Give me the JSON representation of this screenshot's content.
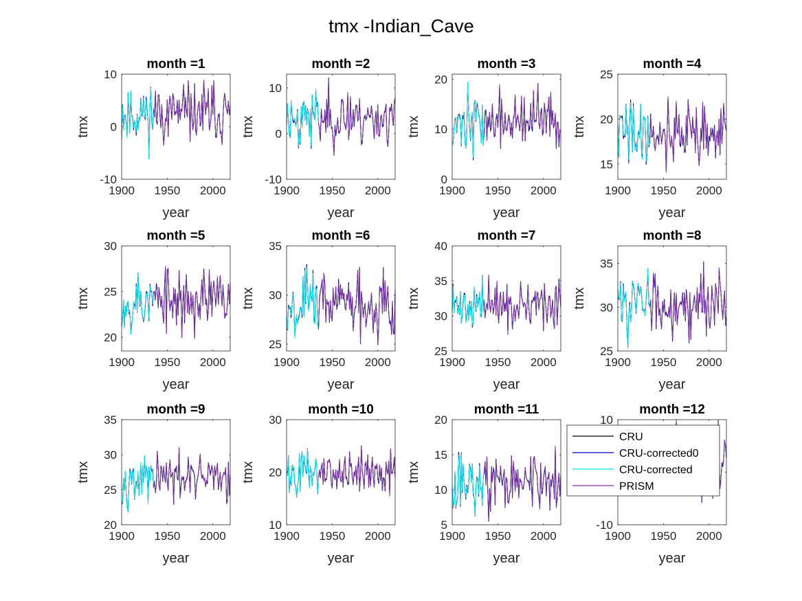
{
  "chart_data": {
    "title": "tmx -Indian_Cave",
    "type": "line",
    "legend": {
      "placement": "over subplot 12 (left-top)",
      "entries": [
        {
          "name": "CRU",
          "color": "#000000"
        },
        {
          "name": "CRU-corrected0",
          "color": "#0000cc"
        },
        {
          "name": "CRU-corrected",
          "color": "#00e5ee"
        },
        {
          "name": "PRISM",
          "color": "#7b2ea0"
        }
      ]
    },
    "xlim": [
      1900,
      2019
    ],
    "xticks": [
      1900,
      1950,
      2000
    ],
    "xlabel": "year",
    "ylabel": "tmx",
    "subplots": [
      {
        "title": "month =1",
        "ylim": [
          -10,
          10
        ],
        "yticks": [
          -10,
          0,
          10
        ],
        "mean": 2.5,
        "std": 2.8,
        "seed": 11
      },
      {
        "title": "month =2",
        "ylim": [
          -10,
          13
        ],
        "yticks": [
          -10,
          0,
          10
        ],
        "mean": 3.5,
        "std": 3.2,
        "seed": 23
      },
      {
        "title": "month =3",
        "ylim": [
          0,
          21
        ],
        "yticks": [
          0,
          10,
          20
        ],
        "mean": 11.5,
        "std": 3.0,
        "seed": 37
      },
      {
        "title": "month =4",
        "ylim": [
          13.3,
          25
        ],
        "yticks": [
          15,
          20,
          25
        ],
        "mean": 18.5,
        "std": 1.9,
        "seed": 41
      },
      {
        "title": "month =5",
        "ylim": [
          18.5,
          30
        ],
        "yticks": [
          20,
          25,
          30
        ],
        "mean": 24.0,
        "std": 1.8,
        "seed": 53
      },
      {
        "title": "month =6",
        "ylim": [
          24.3,
          35
        ],
        "yticks": [
          25,
          30,
          35
        ],
        "mean": 29.3,
        "std": 1.7,
        "seed": 67
      },
      {
        "title": "month =7",
        "ylim": [
          25,
          40
        ],
        "yticks": [
          25,
          30,
          35,
          40
        ],
        "mean": 31.5,
        "std": 1.7,
        "seed": 71
      },
      {
        "title": "month =8",
        "ylim": [
          25,
          37
        ],
        "yticks": [
          25,
          30,
          35
        ],
        "mean": 30.5,
        "std": 1.8,
        "seed": 83
      },
      {
        "title": "month =9",
        "ylim": [
          20,
          35
        ],
        "yticks": [
          20,
          25,
          30,
          35
        ],
        "mean": 26.5,
        "std": 1.7,
        "seed": 97
      },
      {
        "title": "month =10",
        "ylim": [
          10,
          30
        ],
        "yticks": [
          10,
          20,
          30
        ],
        "mean": 20.0,
        "std": 2.2,
        "seed": 101
      },
      {
        "title": "month =11",
        "ylim": [
          5,
          20
        ],
        "yticks": [
          5,
          10,
          15,
          20
        ],
        "mean": 11.0,
        "std": 2.2,
        "seed": 113
      },
      {
        "title": "month =12",
        "ylim": [
          -10,
          10
        ],
        "yticks": [
          -10,
          0,
          10
        ],
        "mean": 2.5,
        "std": 3.0,
        "seed": 127
      }
    ]
  }
}
